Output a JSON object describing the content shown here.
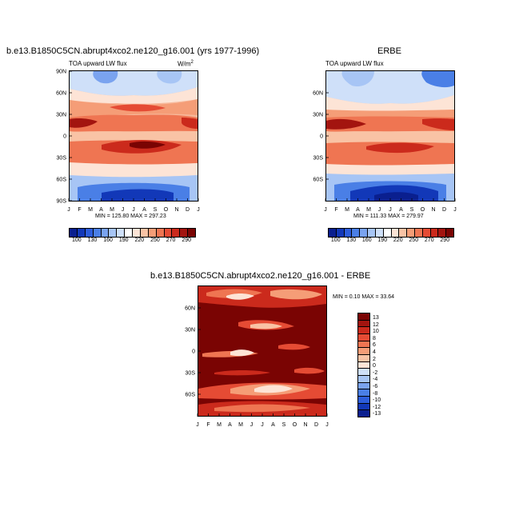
{
  "chart_data": [
    {
      "type": "heatmap",
      "title": "b.e13.B1850C5CN.abrupt4xco2.ne120_g16.001 (yrs 1977-1996)",
      "subtitle_left": "TOA upward LW flux",
      "units": "W/m2",
      "units_display": "W/m",
      "units_sup": "2",
      "x_tick_labels": [
        "J",
        "F",
        "M",
        "A",
        "M",
        "J",
        "J",
        "A",
        "S",
        "O",
        "N",
        "D",
        "J"
      ],
      "y_tick_labels": [
        "90N",
        "60N",
        "30N",
        "0",
        "30S",
        "60S",
        "90S"
      ],
      "ylim": [
        -90,
        90
      ],
      "stats": "MIN = 125.80  MAX = 297.23",
      "colorbar": {
        "labels": [
          "100",
          "130",
          "160",
          "190",
          "220",
          "250",
          "270",
          "290"
        ],
        "colors": [
          "#0a1f8f",
          "#1238b8",
          "#2d5ddb",
          "#4a7fe6",
          "#7aa3ef",
          "#a7c5f5",
          "#cfe0f9",
          "#ffffff",
          "#fde4d6",
          "#f9c3a5",
          "#f59d77",
          "#ef7552",
          "#e54b34",
          "#cb2a1c",
          "#a3140f",
          "#7a0403"
        ]
      }
    },
    {
      "type": "heatmap",
      "title": "ERBE",
      "subtitle_left": "TOA upward LW flux",
      "x_tick_labels": [
        "J",
        "F",
        "M",
        "A",
        "M",
        "J",
        "J",
        "A",
        "S",
        "O",
        "N",
        "D",
        "J"
      ],
      "y_tick_labels": [
        "60N",
        "30N",
        "0",
        "30S",
        "60S"
      ],
      "stats": "MIN = 111.33  MAX = 279.97",
      "colorbar": {
        "labels": [
          "100",
          "130",
          "160",
          "190",
          "220",
          "250",
          "270",
          "290"
        ]
      }
    },
    {
      "type": "heatmap",
      "title": "b.e13.B1850C5CN.abrupt4xco2.ne120_g16.001 - ERBE",
      "x_tick_labels": [
        "J",
        "F",
        "M",
        "A",
        "M",
        "J",
        "J",
        "A",
        "S",
        "O",
        "N",
        "D",
        "J"
      ],
      "y_tick_labels": [
        "60N",
        "30N",
        "0",
        "30S",
        "60S"
      ],
      "stats": "MIN =   0.10  MAX =  33.64",
      "colorbar": {
        "labels": [
          "13",
          "12",
          "10",
          "8",
          "6",
          "4",
          "2",
          "0",
          "-2",
          "-4",
          "-6",
          "-8",
          "-10",
          "-12",
          "-13"
        ],
        "colors": [
          "#7a0403",
          "#a3140f",
          "#cb2a1c",
          "#e54b34",
          "#ef7552",
          "#f59d77",
          "#f9c3a5",
          "#fde4d6",
          "#cfe0f9",
          "#a7c5f5",
          "#7aa3ef",
          "#4a7fe6",
          "#2d5ddb",
          "#1238b8",
          "#0a1f8f"
        ]
      }
    }
  ]
}
